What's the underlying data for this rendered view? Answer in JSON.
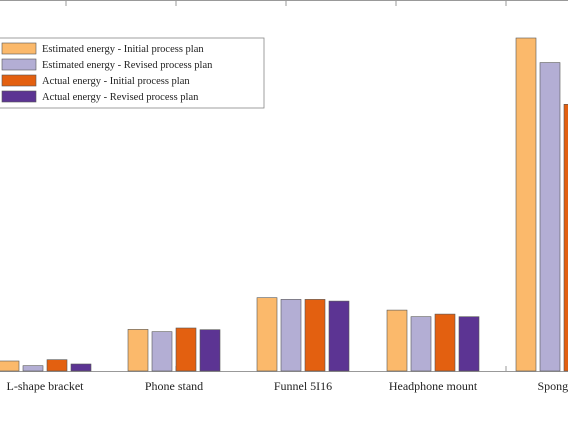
{
  "chart_data": {
    "type": "bar",
    "title": "",
    "xlabel": "",
    "ylabel": "",
    "ylim": [
      0,
      100
    ],
    "grid": false,
    "legend_position": "top-left",
    "categories": [
      "L-shape bracket",
      "Phone stand",
      "Funnel 5I16",
      "Headphone mount",
      "Sponge dr"
    ],
    "series": [
      {
        "name": "Estimated energy - Initial process plan",
        "color": "#fbb96b",
        "values": [
          3.0,
          12.5,
          22.0,
          18.3,
          100.0
        ]
      },
      {
        "name": "Estimated energy - Revised process plan",
        "color": "#b3aed4",
        "values": [
          1.6,
          11.8,
          21.5,
          16.3,
          92.6
        ]
      },
      {
        "name": "Actual energy - Initial process plan",
        "color": "#e36010",
        "values": [
          3.4,
          12.9,
          21.5,
          17.1,
          80.1
        ]
      },
      {
        "name": "Actual energy - Revised process plan",
        "color": "#5c3493",
        "values": [
          2.1,
          12.4,
          21.0,
          16.3,
          null
        ]
      }
    ]
  }
}
